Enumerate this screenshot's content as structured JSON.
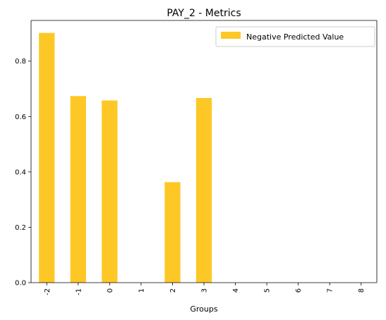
{
  "chart_data": {
    "type": "bar",
    "title": "PAY_2 - Metrics",
    "xlabel": "Groups",
    "ylabel": "",
    "categories": [
      "-2",
      "-1",
      "0",
      "1",
      "2",
      "3",
      "4",
      "5",
      "6",
      "7",
      "8"
    ],
    "series": [
      {
        "name": "Negative Predicted Value",
        "values": [
          0.902,
          0.674,
          0.658,
          0,
          0.363,
          0.667,
          0,
          0,
          0,
          0,
          0
        ]
      }
    ],
    "ylim": [
      0,
      0.947
    ],
    "yticks": [
      "0.0",
      "0.2",
      "0.4",
      "0.6",
      "0.8"
    ],
    "ytick_values": [
      0,
      0.2,
      0.4,
      0.6,
      0.8
    ],
    "grid": false,
    "legend_position": "top-right",
    "bar_color": "#FDC826"
  }
}
